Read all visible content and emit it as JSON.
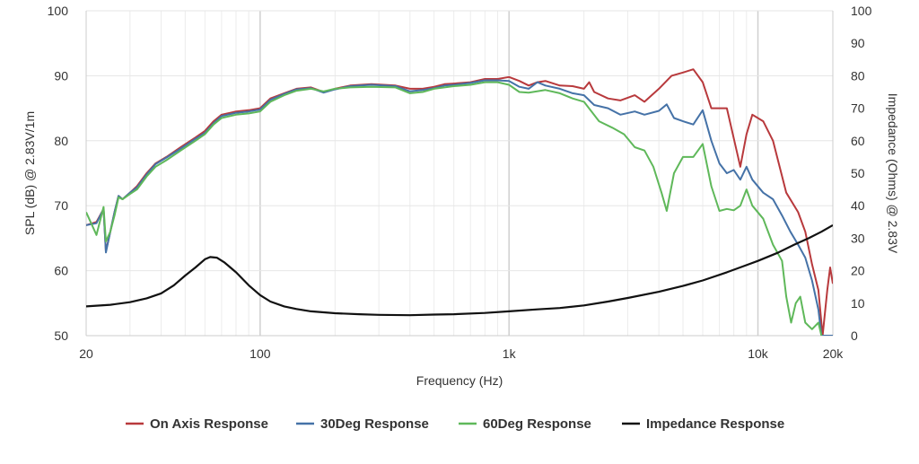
{
  "chart_data": {
    "type": "line",
    "x_axis": {
      "label": "Frequency (Hz)",
      "scale": "log",
      "range": [
        20,
        20000
      ],
      "ticks": [
        {
          "value": 20,
          "label": "20"
        },
        {
          "value": 100,
          "label": "100"
        },
        {
          "value": 1000,
          "label": "1k"
        },
        {
          "value": 10000,
          "label": "10k"
        },
        {
          "value": 20000,
          "label": "20k"
        }
      ]
    },
    "y_axis_left": {
      "label": "SPL (dB) @ 2.83V/1m",
      "range": [
        50,
        100
      ],
      "ticks": [
        "50",
        "60",
        "70",
        "80",
        "90",
        "100"
      ]
    },
    "y_axis_right": {
      "label": "Impedance (Ohms) @ 2.83V",
      "range": [
        0,
        100
      ],
      "ticks": [
        "0",
        "10",
        "20",
        "30",
        "40",
        "50",
        "60",
        "70",
        "80",
        "90",
        "100"
      ]
    },
    "grid": true,
    "legend_position": "bottom",
    "series": [
      {
        "name": "On Axis Response",
        "color": "#b8393c",
        "axis": "left",
        "points": [
          [
            20,
            67
          ],
          [
            22,
            67.5
          ],
          [
            23.5,
            69.5
          ],
          [
            24,
            63
          ],
          [
            25,
            66
          ],
          [
            26,
            69
          ],
          [
            27,
            71.5
          ],
          [
            28,
            71
          ],
          [
            30,
            72
          ],
          [
            32,
            73
          ],
          [
            35,
            75
          ],
          [
            38,
            76.5
          ],
          [
            42,
            77.5
          ],
          [
            48,
            79
          ],
          [
            55,
            80.5
          ],
          [
            60,
            81.5
          ],
          [
            65,
            83
          ],
          [
            70,
            84
          ],
          [
            80,
            84.5
          ],
          [
            90,
            84.7
          ],
          [
            100,
            85
          ],
          [
            110,
            86.5
          ],
          [
            125,
            87.3
          ],
          [
            140,
            88
          ],
          [
            160,
            88.2
          ],
          [
            180,
            87.5
          ],
          [
            200,
            88
          ],
          [
            230,
            88.5
          ],
          [
            280,
            88.7
          ],
          [
            350,
            88.5
          ],
          [
            400,
            88
          ],
          [
            450,
            88
          ],
          [
            500,
            88.3
          ],
          [
            550,
            88.7
          ],
          [
            600,
            88.8
          ],
          [
            700,
            89
          ],
          [
            800,
            89.5
          ],
          [
            900,
            89.5
          ],
          [
            1000,
            89.8
          ],
          [
            1100,
            89.2
          ],
          [
            1200,
            88.5
          ],
          [
            1300,
            89
          ],
          [
            1400,
            89.2
          ],
          [
            1600,
            88.5
          ],
          [
            1800,
            88.4
          ],
          [
            2000,
            88
          ],
          [
            2100,
            89
          ],
          [
            2200,
            87.5
          ],
          [
            2500,
            86.5
          ],
          [
            2800,
            86.2
          ],
          [
            3200,
            87
          ],
          [
            3500,
            86
          ],
          [
            4000,
            88
          ],
          [
            4500,
            90
          ],
          [
            5000,
            90.5
          ],
          [
            5500,
            91
          ],
          [
            6000,
            89
          ],
          [
            6500,
            85
          ],
          [
            7500,
            85
          ],
          [
            8500,
            76
          ],
          [
            9000,
            81
          ],
          [
            9500,
            84
          ],
          [
            10500,
            83
          ],
          [
            11500,
            80
          ],
          [
            13000,
            72
          ],
          [
            14500,
            69
          ],
          [
            15500,
            66
          ],
          [
            16500,
            61
          ],
          [
            17500,
            57
          ],
          [
            18200,
            50
          ],
          [
            19000,
            57
          ],
          [
            19500,
            60.5
          ],
          [
            20000,
            58
          ]
        ]
      },
      {
        "name": "30Deg Response",
        "color": "#4572a7",
        "axis": "left",
        "points": [
          [
            20,
            67
          ],
          [
            22,
            67.3
          ],
          [
            23.5,
            69.5
          ],
          [
            24,
            62.8
          ],
          [
            25,
            66
          ],
          [
            26,
            69
          ],
          [
            27,
            71.5
          ],
          [
            28,
            71
          ],
          [
            30,
            72
          ],
          [
            32,
            72.8
          ],
          [
            35,
            74.8
          ],
          [
            38,
            76.4
          ],
          [
            42,
            77.4
          ],
          [
            48,
            78.8
          ],
          [
            55,
            80.3
          ],
          [
            60,
            81.2
          ],
          [
            65,
            82.7
          ],
          [
            70,
            83.8
          ],
          [
            80,
            84.3
          ],
          [
            90,
            84.5
          ],
          [
            100,
            84.8
          ],
          [
            110,
            86.3
          ],
          [
            125,
            87.2
          ],
          [
            140,
            87.9
          ],
          [
            160,
            88.1
          ],
          [
            180,
            87.4
          ],
          [
            200,
            87.9
          ],
          [
            230,
            88.4
          ],
          [
            280,
            88.6
          ],
          [
            350,
            88.4
          ],
          [
            400,
            87.6
          ],
          [
            450,
            87.8
          ],
          [
            500,
            88.1
          ],
          [
            550,
            88.5
          ],
          [
            600,
            88.6
          ],
          [
            700,
            88.9
          ],
          [
            800,
            89.3
          ],
          [
            900,
            89.3
          ],
          [
            1000,
            89.2
          ],
          [
            1100,
            88.3
          ],
          [
            1200,
            88
          ],
          [
            1300,
            89
          ],
          [
            1400,
            88.5
          ],
          [
            1600,
            88
          ],
          [
            1800,
            87.3
          ],
          [
            2000,
            87
          ],
          [
            2200,
            85.5
          ],
          [
            2500,
            85
          ],
          [
            2800,
            84
          ],
          [
            3200,
            84.5
          ],
          [
            3500,
            84
          ],
          [
            4000,
            84.6
          ],
          [
            4300,
            85.6
          ],
          [
            4600,
            83.5
          ],
          [
            5000,
            83
          ],
          [
            5500,
            82.5
          ],
          [
            6000,
            84.7
          ],
          [
            6500,
            80
          ],
          [
            7000,
            76.5
          ],
          [
            7500,
            75
          ],
          [
            8000,
            75.5
          ],
          [
            8500,
            74
          ],
          [
            9000,
            76
          ],
          [
            9500,
            74
          ],
          [
            10500,
            72
          ],
          [
            11500,
            71
          ],
          [
            12500,
            68.5
          ],
          [
            13500,
            66
          ],
          [
            14500,
            64
          ],
          [
            15500,
            62
          ],
          [
            16500,
            58.5
          ],
          [
            17500,
            54
          ],
          [
            18000,
            50
          ],
          [
            20000,
            50
          ]
        ]
      },
      {
        "name": "60Deg Response",
        "color": "#5fb85a",
        "axis": "left",
        "points": [
          [
            20,
            69
          ],
          [
            22,
            65.5
          ],
          [
            23.5,
            69.8
          ],
          [
            24,
            64.5
          ],
          [
            25,
            66
          ],
          [
            26,
            68.5
          ],
          [
            27,
            71.3
          ],
          [
            28,
            71
          ],
          [
            30,
            71.8
          ],
          [
            32,
            72.5
          ],
          [
            35,
            74.5
          ],
          [
            38,
            76
          ],
          [
            42,
            77
          ],
          [
            48,
            78.5
          ],
          [
            55,
            80
          ],
          [
            60,
            81
          ],
          [
            65,
            82.5
          ],
          [
            70,
            83.5
          ],
          [
            80,
            84
          ],
          [
            90,
            84.2
          ],
          [
            100,
            84.5
          ],
          [
            110,
            86
          ],
          [
            125,
            87
          ],
          [
            140,
            87.7
          ],
          [
            160,
            88
          ],
          [
            180,
            87.6
          ],
          [
            200,
            88
          ],
          [
            230,
            88.2
          ],
          [
            280,
            88.3
          ],
          [
            350,
            88.2
          ],
          [
            400,
            87.3
          ],
          [
            450,
            87.5
          ],
          [
            500,
            88
          ],
          [
            550,
            88.2
          ],
          [
            600,
            88.4
          ],
          [
            700,
            88.6
          ],
          [
            800,
            89
          ],
          [
            900,
            89
          ],
          [
            1000,
            88.6
          ],
          [
            1100,
            87.5
          ],
          [
            1200,
            87.4
          ],
          [
            1400,
            87.8
          ],
          [
            1600,
            87.3
          ],
          [
            1800,
            86.5
          ],
          [
            2000,
            86
          ],
          [
            2300,
            83
          ],
          [
            2600,
            82
          ],
          [
            2900,
            81
          ],
          [
            3200,
            79
          ],
          [
            3500,
            78.5
          ],
          [
            3800,
            76
          ],
          [
            4100,
            72
          ],
          [
            4300,
            69.2
          ],
          [
            4600,
            75
          ],
          [
            5000,
            77.5
          ],
          [
            5500,
            77.5
          ],
          [
            6000,
            79.5
          ],
          [
            6500,
            73
          ],
          [
            7000,
            69.2
          ],
          [
            7500,
            69.5
          ],
          [
            8000,
            69.3
          ],
          [
            8500,
            70
          ],
          [
            9000,
            72.5
          ],
          [
            9500,
            70
          ],
          [
            10500,
            68
          ],
          [
            11500,
            64
          ],
          [
            12500,
            61.5
          ],
          [
            13000,
            56
          ],
          [
            13600,
            52
          ],
          [
            14200,
            55
          ],
          [
            14800,
            56
          ],
          [
            15500,
            52
          ],
          [
            16500,
            51
          ],
          [
            17500,
            52
          ],
          [
            18000,
            50
          ]
        ]
      },
      {
        "name": "Impedance Response",
        "color": "#111111",
        "axis": "right",
        "points": [
          [
            20,
            9
          ],
          [
            25,
            9.5
          ],
          [
            30,
            10.3
          ],
          [
            35,
            11.5
          ],
          [
            40,
            13
          ],
          [
            45,
            15.5
          ],
          [
            50,
            18.5
          ],
          [
            55,
            21
          ],
          [
            60,
            23.5
          ],
          [
            63,
            24.2
          ],
          [
            67,
            24
          ],
          [
            72,
            22.5
          ],
          [
            80,
            19.5
          ],
          [
            90,
            15.5
          ],
          [
            100,
            12.5
          ],
          [
            110,
            10.5
          ],
          [
            125,
            9
          ],
          [
            140,
            8.2
          ],
          [
            160,
            7.5
          ],
          [
            200,
            6.9
          ],
          [
            250,
            6.6
          ],
          [
            300,
            6.4
          ],
          [
            400,
            6.3
          ],
          [
            500,
            6.5
          ],
          [
            600,
            6.6
          ],
          [
            800,
            7
          ],
          [
            1000,
            7.5
          ],
          [
            1300,
            8.1
          ],
          [
            1600,
            8.5
          ],
          [
            2000,
            9.3
          ],
          [
            2500,
            10.5
          ],
          [
            3000,
            11.6
          ],
          [
            4000,
            13.5
          ],
          [
            5000,
            15.3
          ],
          [
            6000,
            17
          ],
          [
            7500,
            19.5
          ],
          [
            9000,
            21.7
          ],
          [
            10000,
            23
          ],
          [
            12000,
            25.5
          ],
          [
            14000,
            28
          ],
          [
            16000,
            30
          ],
          [
            18000,
            32
          ],
          [
            20000,
            34
          ]
        ]
      }
    ]
  }
}
